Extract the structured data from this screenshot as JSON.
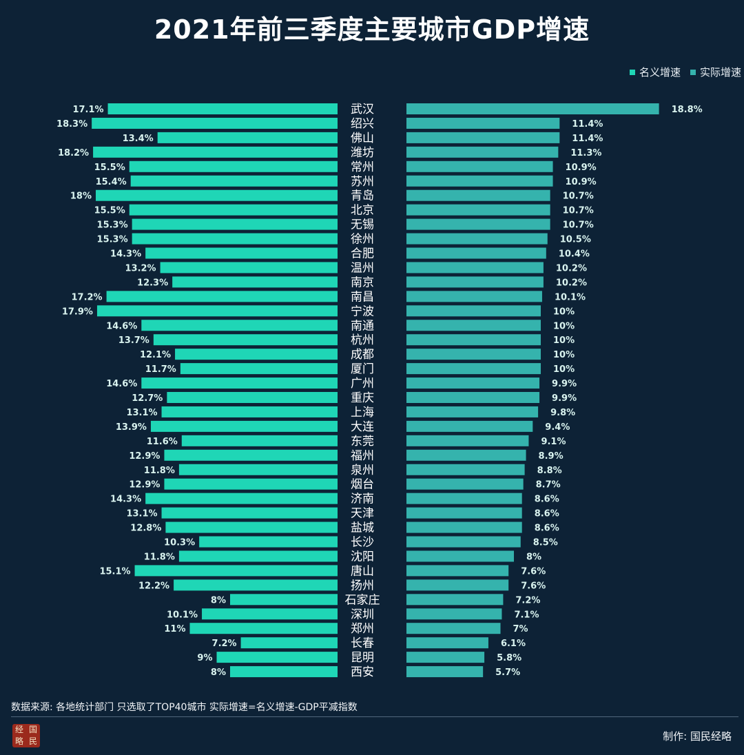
{
  "title": "2021年前三季度主要城市GDP增速",
  "legend": {
    "nominal": "名义增速",
    "real": "实际增速"
  },
  "colors": {
    "background": "#0d2236",
    "nominal": "#1fd6b6",
    "real": "#35b3ad",
    "label": "#ffffff",
    "value_text": "#d9f3ef"
  },
  "footer": {
    "source": "数据来源: 各地统计部门  只选取了TOP40城市 实际增速=名义增速-GDP平减指数",
    "credit": "制作: 国民经略",
    "logo_chars": [
      "经",
      "国",
      "略",
      "民"
    ]
  },
  "chart_data": {
    "type": "bar",
    "orientation": "horizontal-butterfly",
    "title": "2021年前三季度主要城市GDP增速",
    "categories": [
      "武汉",
      "绍兴",
      "佛山",
      "潍坊",
      "常州",
      "苏州",
      "青岛",
      "北京",
      "无锡",
      "徐州",
      "合肥",
      "温州",
      "南京",
      "南昌",
      "宁波",
      "南通",
      "杭州",
      "成都",
      "厦门",
      "广州",
      "重庆",
      "上海",
      "大连",
      "东莞",
      "福州",
      "泉州",
      "烟台",
      "济南",
      "天津",
      "盐城",
      "长沙",
      "沈阳",
      "唐山",
      "扬州",
      "石家庄",
      "深圳",
      "郑州",
      "长春",
      "昆明",
      "西安"
    ],
    "series": [
      {
        "name": "名义增速",
        "unit": "%",
        "side": "left",
        "values": [
          17.1,
          18.3,
          13.4,
          18.2,
          15.5,
          15.4,
          18,
          15.5,
          15.3,
          15.3,
          14.3,
          13.2,
          12.3,
          17.2,
          17.9,
          14.6,
          13.7,
          12.1,
          11.7,
          14.6,
          12.7,
          13.1,
          13.9,
          11.6,
          12.9,
          11.8,
          12.9,
          14.3,
          13.1,
          12.8,
          10.3,
          11.8,
          15.1,
          12.2,
          8,
          10.1,
          11,
          7.2,
          9,
          8
        ],
        "labels": [
          "17.1%",
          "18.3%",
          "13.4%",
          "18.2%",
          "15.5%",
          "15.4%",
          "18%",
          "15.5%",
          "15.3%",
          "15.3%",
          "14.3%",
          "13.2%",
          "12.3%",
          "17.2%",
          "17.9%",
          "14.6%",
          "13.7%",
          "12.1%",
          "11.7%",
          "14.6%",
          "12.7%",
          "13.1%",
          "13.9%",
          "11.6%",
          "12.9%",
          "11.8%",
          "12.9%",
          "14.3%",
          "13.1%",
          "12.8%",
          "10.3%",
          "11.8%",
          "15.1%",
          "12.2%",
          "8%",
          "10.1%",
          "11%",
          "7.2%",
          "9%",
          "8%"
        ]
      },
      {
        "name": "实际增速",
        "unit": "%",
        "side": "right",
        "values": [
          18.8,
          11.4,
          11.4,
          11.3,
          10.9,
          10.9,
          10.7,
          10.7,
          10.7,
          10.5,
          10.4,
          10.2,
          10.2,
          10.1,
          10,
          10,
          10,
          10,
          10,
          9.9,
          9.9,
          9.8,
          9.4,
          9.1,
          8.9,
          8.8,
          8.7,
          8.6,
          8.6,
          8.6,
          8.5,
          8,
          7.6,
          7.6,
          7.2,
          7.1,
          7,
          6.1,
          5.8,
          5.7
        ],
        "labels": [
          "18.8%",
          "11.4%",
          "11.4%",
          "11.3%",
          "10.9%",
          "10.9%",
          "10.7%",
          "10.7%",
          "10.7%",
          "10.5%",
          "10.4%",
          "10.2%",
          "10.2%",
          "10.1%",
          "10%",
          "10%",
          "10%",
          "10%",
          "10%",
          "9.9%",
          "9.9%",
          "9.8%",
          "9.4%",
          "9.1%",
          "8.9%",
          "8.8%",
          "8.7%",
          "8.6%",
          "8.6%",
          "8.6%",
          "8.5%",
          "8%",
          "7.6%",
          "7.6%",
          "7.2%",
          "7.1%",
          "7%",
          "6.1%",
          "5.8%",
          "5.7%"
        ]
      }
    ],
    "grid": false,
    "legend_position": "top-right"
  }
}
